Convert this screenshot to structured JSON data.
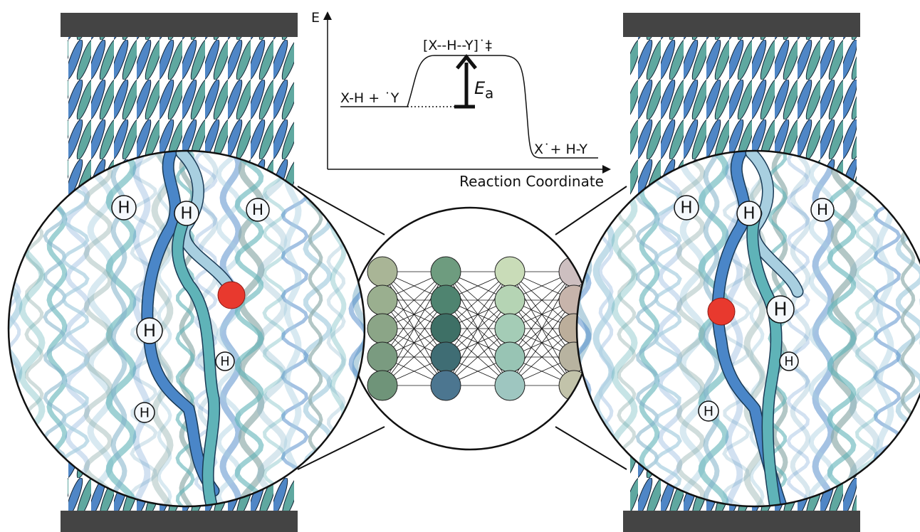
{
  "energy_diagram": {
    "y_axis_label": "E",
    "x_axis_label": "Reaction Coordinate",
    "reactants": "X-H + ˙Y",
    "transition_state": "[X--H--Y]˙‡",
    "products": "X˙+ H-Y",
    "activation_energy": {
      "symbol": "E",
      "subscript": "a"
    }
  },
  "left_zoom": {
    "atoms": [
      "H",
      "H",
      "H",
      "H",
      "H",
      "H"
    ]
  },
  "right_zoom": {
    "atoms": [
      "H",
      "H",
      "H",
      "H",
      "H",
      "H"
    ]
  }
}
